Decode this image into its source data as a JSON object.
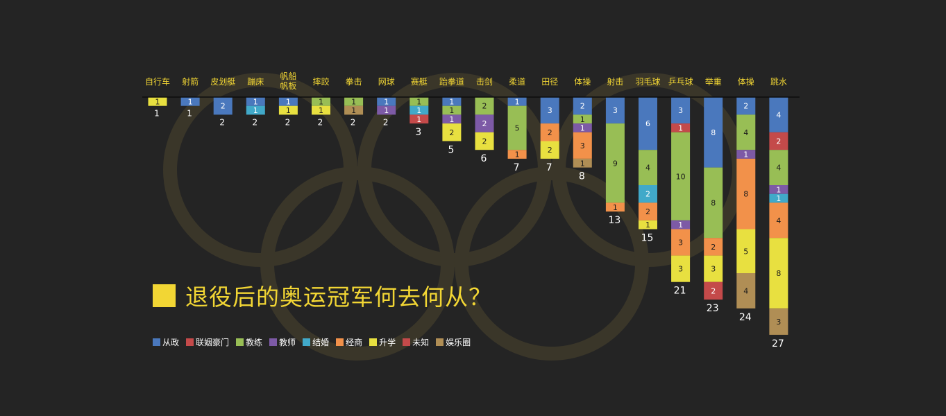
{
  "title": "退役后的奥运冠军何去何从？",
  "colors": {
    "background": "#242424",
    "accent": "#f2d634",
    "rings": "#3a3629"
  },
  "legend": [
    {
      "name": "从政",
      "color": "#4a78bd"
    },
    {
      "name": "联姻豪门",
      "color": "#c44a4a"
    },
    {
      "name": "教练",
      "color": "#98be55"
    },
    {
      "name": "教师",
      "color": "#7d5aa6"
    },
    {
      "name": "结婚",
      "color": "#41a9c9"
    },
    {
      "name": "经商",
      "color": "#f2914a"
    },
    {
      "name": "升学",
      "color": "#e8e040"
    },
    {
      "name": "未知",
      "color": "#c44a4a"
    },
    {
      "name": "娱乐圈",
      "color": "#b08e55"
    }
  ],
  "chart_data": {
    "type": "bar",
    "orientation": "vertical-stacked-downward",
    "categories": [
      "自行车",
      "射箭",
      "皮划艇",
      "蹦床",
      "帆船帆板",
      "摔跤",
      "拳击",
      "网球",
      "赛艇",
      "跆拳道",
      "击剑",
      "柔道",
      "田径",
      "体操",
      "射击",
      "羽毛球",
      "乒乓球",
      "举重",
      "体操",
      "跳水"
    ],
    "totals": [
      1,
      1,
      2,
      2,
      2,
      2,
      2,
      2,
      3,
      5,
      6,
      7,
      7,
      8,
      13,
      15,
      21,
      23,
      24,
      27
    ],
    "stacks": [
      [
        {
          "cat": "升学",
          "v": 1
        }
      ],
      [
        {
          "cat": "从政",
          "v": 1
        }
      ],
      [
        {
          "cat": "从政",
          "v": 2
        }
      ],
      [
        {
          "cat": "从政",
          "v": 1
        },
        {
          "cat": "结婚",
          "v": 1
        }
      ],
      [
        {
          "cat": "从政",
          "v": 1
        },
        {
          "cat": "升学",
          "v": 1
        }
      ],
      [
        {
          "cat": "教练",
          "v": 1
        },
        {
          "cat": "升学",
          "v": 1
        }
      ],
      [
        {
          "cat": "教练",
          "v": 1
        },
        {
          "cat": "娱乐圈",
          "v": 1
        }
      ],
      [
        {
          "cat": "从政",
          "v": 1
        },
        {
          "cat": "教师",
          "v": 1
        }
      ],
      [
        {
          "cat": "教练",
          "v": 1
        },
        {
          "cat": "结婚",
          "v": 1
        },
        {
          "cat": "联姻豪门",
          "v": 1
        }
      ],
      [
        {
          "cat": "从政",
          "v": 1
        },
        {
          "cat": "教练",
          "v": 1
        },
        {
          "cat": "教师",
          "v": 1
        },
        {
          "cat": "升学",
          "v": 2
        }
      ],
      [
        {
          "cat": "教练",
          "v": 2
        },
        {
          "cat": "教师",
          "v": 2
        },
        {
          "cat": "升学",
          "v": 2
        }
      ],
      [
        {
          "cat": "从政",
          "v": 1
        },
        {
          "cat": "教练",
          "v": 5
        },
        {
          "cat": "经商",
          "v": 1
        }
      ],
      [
        {
          "cat": "从政",
          "v": 3
        },
        {
          "cat": "经商",
          "v": 2
        },
        {
          "cat": "升学",
          "v": 2
        }
      ],
      [
        {
          "cat": "从政",
          "v": 2
        },
        {
          "cat": "教练",
          "v": 1
        },
        {
          "cat": "教师",
          "v": 1
        },
        {
          "cat": "经商",
          "v": 3
        },
        {
          "cat": "娱乐圈",
          "v": 1
        }
      ],
      [
        {
          "cat": "从政",
          "v": 3
        },
        {
          "cat": "教练",
          "v": 9
        },
        {
          "cat": "经商",
          "v": 1
        }
      ],
      [
        {
          "cat": "从政",
          "v": 6
        },
        {
          "cat": "教练",
          "v": 4
        },
        {
          "cat": "结婚",
          "v": 2
        },
        {
          "cat": "经商",
          "v": 2
        },
        {
          "cat": "升学",
          "v": 1
        }
      ],
      [
        {
          "cat": "从政",
          "v": 3
        },
        {
          "cat": "联姻豪门",
          "v": 1
        },
        {
          "cat": "教练",
          "v": 10
        },
        {
          "cat": "教师",
          "v": 1
        },
        {
          "cat": "经商",
          "v": 3
        },
        {
          "cat": "升学",
          "v": 3
        }
      ],
      [
        {
          "cat": "从政",
          "v": 8
        },
        {
          "cat": "教练",
          "v": 8
        },
        {
          "cat": "经商",
          "v": 2
        },
        {
          "cat": "升学",
          "v": 3
        },
        {
          "cat": "未知",
          "v": 2
        }
      ],
      [
        {
          "cat": "从政",
          "v": 2
        },
        {
          "cat": "教练",
          "v": 4
        },
        {
          "cat": "教师",
          "v": 1
        },
        {
          "cat": "经商",
          "v": 8
        },
        {
          "cat": "升学",
          "v": 5
        },
        {
          "cat": "娱乐圈",
          "v": 4
        }
      ],
      [
        {
          "cat": "从政",
          "v": 4
        },
        {
          "cat": "联姻豪门",
          "v": 2
        },
        {
          "cat": "教练",
          "v": 4
        },
        {
          "cat": "教师",
          "v": 1
        },
        {
          "cat": "结婚",
          "v": 1
        },
        {
          "cat": "经商",
          "v": 4
        },
        {
          "cat": "升学",
          "v": 8
        },
        {
          "cat": "娱乐圈",
          "v": 3
        }
      ]
    ],
    "xlabel": "",
    "ylabel": "",
    "grid": false,
    "legend_position": "bottom-left"
  }
}
